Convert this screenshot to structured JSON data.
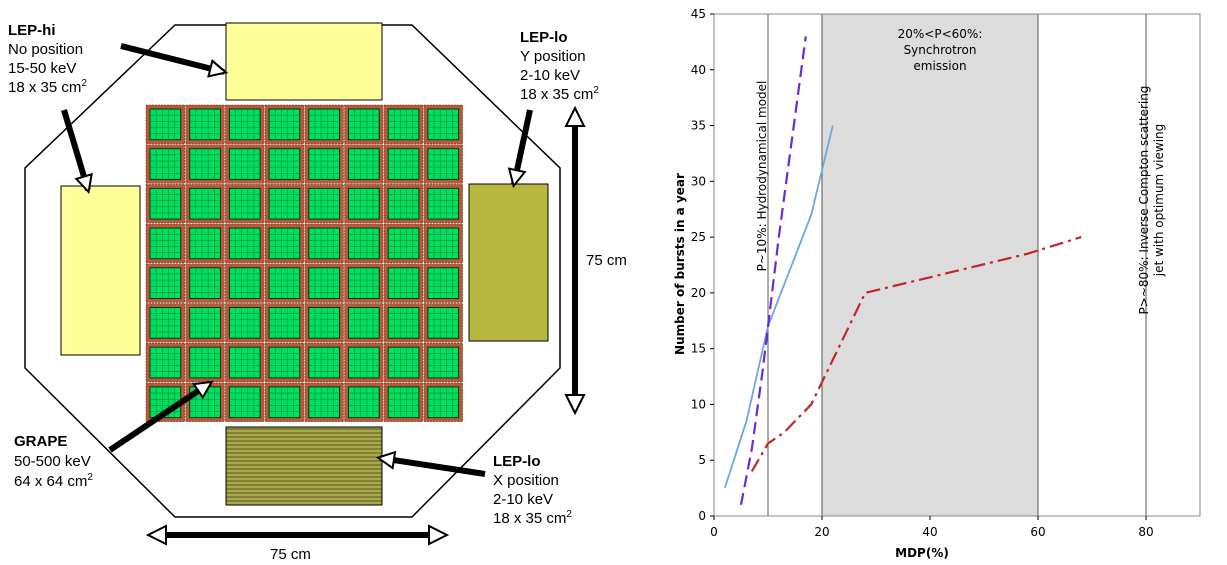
{
  "diagram": {
    "lep_hi": {
      "title": "LEP-hi",
      "lines": [
        "No position",
        "15-50 keV",
        "18 x 35 cm",
        "2"
      ]
    },
    "lep_lo_y": {
      "title": "LEP-lo",
      "lines": [
        "Y position",
        "2-10 keV",
        "18 x 35 cm",
        "2"
      ]
    },
    "lep_lo_x": {
      "title": "LEP-lo",
      "lines": [
        "X position",
        "2-10 keV",
        "18 x 35 cm",
        "2"
      ]
    },
    "grape": {
      "title": "GRAPE",
      "lines": [
        "50-500 keV",
        "64 x 64 cm",
        "2"
      ]
    },
    "dim_vertical": "75 cm",
    "dim_horizontal": "75 cm",
    "colors": {
      "lep_hi_fill": "#ffff99",
      "lep_lo_fill": "#b8b840",
      "grape_module": "#00e060",
      "grape_frame": "#b85a3a"
    }
  },
  "chart_data": {
    "type": "line",
    "xlabel": "MDP(%)",
    "ylabel": "Number of bursts in a year",
    "xlim": [
      0,
      90
    ],
    "ylim": [
      0,
      45
    ],
    "x_ticks": [
      "0",
      "20",
      "40",
      "60",
      "80"
    ],
    "y_ticks": [
      "0",
      "5",
      "10",
      "15",
      "20",
      "25",
      "30",
      "35",
      "40",
      "45"
    ],
    "vlines": [
      10,
      20,
      60,
      80
    ],
    "shaded_region": [
      20,
      60
    ],
    "annotations": {
      "hydro": "P~10%: Hydrodynamical model",
      "synch_1": "20%<P<60%:",
      "synch_2": "Synchrotron",
      "synch_3": "emission",
      "ic_1": "P>~80%: Inverse Compton scattering",
      "ic_2": "jet with optimum viewing"
    },
    "series": [
      {
        "style": "solid",
        "color": "#6aa8e0",
        "x": [
          2,
          6,
          10,
          18,
          22
        ],
        "y": [
          2.5,
          8.5,
          17,
          27,
          35
        ]
      },
      {
        "style": "dashed",
        "color": "#6a2ad8",
        "x": [
          5,
          7,
          9,
          12,
          17
        ],
        "y": [
          1,
          6,
          13,
          25,
          43
        ]
      },
      {
        "style": "dashdot",
        "color": "#c0272d",
        "x": [
          7,
          10,
          13,
          18,
          21,
          28,
          58,
          68
        ],
        "y": [
          4,
          6.5,
          7.5,
          10,
          13,
          20,
          23.5,
          25
        ]
      }
    ]
  }
}
